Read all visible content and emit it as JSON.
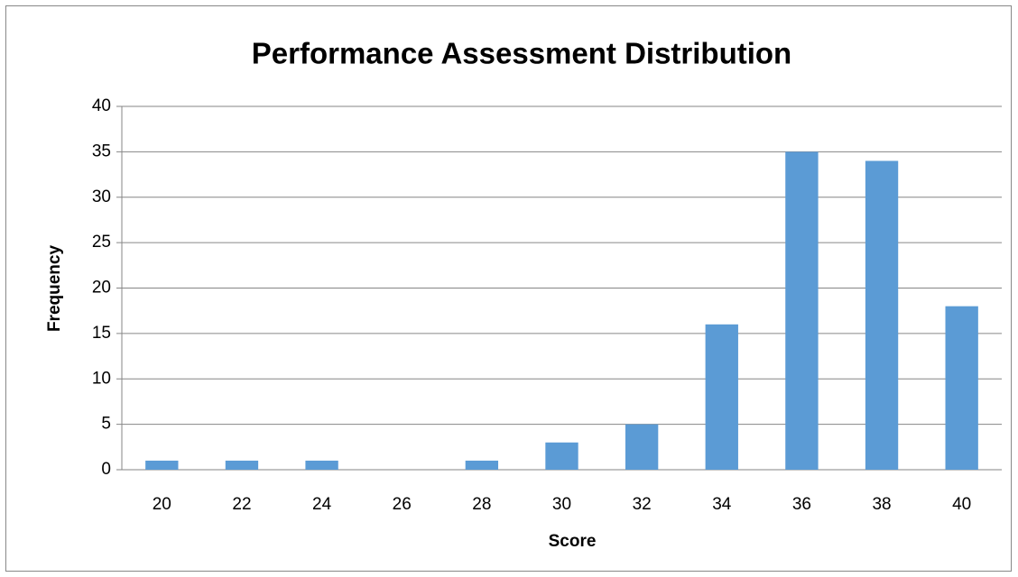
{
  "chart_data": {
    "type": "bar",
    "title": "Performance Assessment Distribution",
    "x_label": "Score",
    "y_label": "Frequency",
    "categories": [
      "20",
      "22",
      "24",
      "26",
      "28",
      "30",
      "32",
      "34",
      "36",
      "38",
      "40"
    ],
    "values": [
      1,
      1,
      1,
      0,
      1,
      3,
      5,
      16,
      35,
      34,
      18
    ],
    "color": "#5b9bd5",
    "ylim": [
      0,
      40
    ],
    "yticks": [
      0,
      5,
      10,
      15,
      20,
      25,
      30,
      35,
      40
    ],
    "grid": true
  }
}
